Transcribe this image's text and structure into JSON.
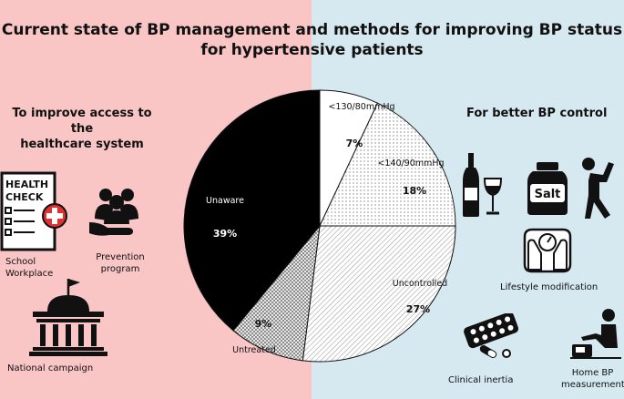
{
  "title_line1": "Current state of BP management and methods for improving BP status",
  "title_line2": "for hypertensive patients",
  "left_section": {
    "title_line1": "To improve access to the",
    "title_line2": "healthcare system",
    "health_check_text_1": "HEALTH",
    "health_check_text_2": "CHECK",
    "school_label": "School",
    "workplace_label": "Workplace",
    "prevention_label_1": "Prevention",
    "prevention_label_2": "program",
    "campaign_label": "National campaign"
  },
  "right_section": {
    "title": "For better BP control",
    "salt_text": "Salt",
    "lifestyle_label": "Lifestyle modification",
    "inertia_label": "Clinical inertia",
    "home_bp_label_1": "Home BP",
    "home_bp_label_2": "measurement"
  },
  "colors": {
    "left_bg": "#f9c5c5",
    "right_bg": "#d6e9f1"
  },
  "chart_data": {
    "type": "pie",
    "title": "",
    "slices": [
      {
        "label": "<130/80mmHg",
        "value": 7,
        "value_label": "7%",
        "fill": "white"
      },
      {
        "label": "<140/90mmHg",
        "value": 18,
        "value_label": "18%",
        "fill": "dots"
      },
      {
        "label": "Uncontrolled",
        "value": 27,
        "value_label": "27%",
        "fill": "hatch"
      },
      {
        "label": "Untreated",
        "value": 9,
        "value_label": "9%",
        "fill": "cross"
      },
      {
        "label": "Unaware",
        "value": 39,
        "value_label": "39%",
        "fill": "black"
      }
    ]
  }
}
